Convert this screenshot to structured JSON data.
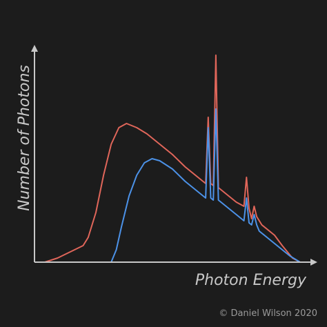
{
  "chart_data": {
    "type": "line",
    "xlabel": "Photon Energy",
    "ylabel": "Number of Photons",
    "xlim": [
      0,
      100
    ],
    "ylim": [
      0,
      100
    ],
    "grid": false,
    "legend": "none",
    "series": [
      {
        "color": "#e0665a",
        "points": [
          [
            0,
            0
          ],
          [
            5,
            2
          ],
          [
            10,
            5
          ],
          [
            15,
            8
          ],
          [
            17,
            12
          ],
          [
            20,
            24
          ],
          [
            23,
            42
          ],
          [
            26,
            57
          ],
          [
            29,
            65
          ],
          [
            32,
            67
          ],
          [
            36,
            65
          ],
          [
            40,
            62
          ],
          [
            45,
            57
          ],
          [
            50,
            52
          ],
          [
            55,
            46
          ],
          [
            60,
            41
          ],
          [
            63,
            38
          ],
          [
            64,
            70
          ],
          [
            65,
            38
          ],
          [
            66,
            37
          ],
          [
            67,
            100
          ],
          [
            68,
            36
          ],
          [
            70,
            34
          ],
          [
            75,
            29
          ],
          [
            78,
            27
          ],
          [
            79,
            41
          ],
          [
            80,
            26
          ],
          [
            81,
            21
          ],
          [
            82,
            27
          ],
          [
            83,
            22
          ],
          [
            85,
            18
          ],
          [
            90,
            13
          ],
          [
            93,
            8
          ],
          [
            97,
            2
          ],
          [
            100,
            0
          ]
        ]
      },
      {
        "color": "#4c92e8",
        "points": [
          [
            26,
            0
          ],
          [
            28,
            6
          ],
          [
            30,
            17
          ],
          [
            33,
            32
          ],
          [
            36,
            42
          ],
          [
            39,
            48
          ],
          [
            42,
            50
          ],
          [
            45,
            49
          ],
          [
            50,
            45
          ],
          [
            55,
            39
          ],
          [
            60,
            34
          ],
          [
            63,
            31
          ],
          [
            64,
            65
          ],
          [
            65,
            31
          ],
          [
            66,
            30
          ],
          [
            67,
            74
          ],
          [
            68,
            30
          ],
          [
            70,
            28
          ],
          [
            75,
            23
          ],
          [
            78,
            20
          ],
          [
            79,
            31
          ],
          [
            80,
            19
          ],
          [
            81,
            18
          ],
          [
            82,
            23
          ],
          [
            83,
            18
          ],
          [
            84,
            15
          ],
          [
            88,
            11
          ],
          [
            92,
            7
          ],
          [
            96,
            3
          ],
          [
            100,
            0
          ]
        ]
      }
    ]
  },
  "credit": "© Daniel Wilson 2020"
}
